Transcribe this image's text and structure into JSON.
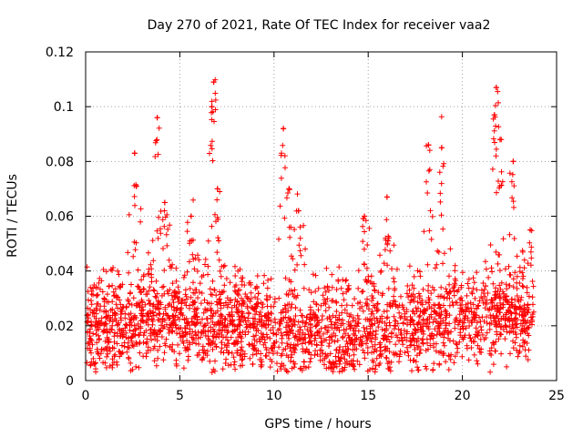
{
  "chart_data": {
    "type": "scatter",
    "title": "Day 270 of 2021, Rate Of TEC Index for receiver vaa2",
    "xlabel": "GPS time / hours",
    "ylabel": "ROTI / TECUs",
    "xlim": [
      0,
      25
    ],
    "ylim": [
      0,
      0.12
    ],
    "xticks": [
      0,
      5,
      10,
      15,
      20,
      25
    ],
    "xtick_labels": [
      "0",
      "5",
      "10",
      "15",
      "20",
      "25"
    ],
    "yticks": [
      0,
      0.02,
      0.04,
      0.06,
      0.08,
      0.1,
      0.12
    ],
    "ytick_labels": [
      "0",
      "0.02",
      "0.04",
      "0.06",
      "0.08",
      "0.1",
      "0.12"
    ],
    "grid": true,
    "marker": "+",
    "marker_color": "#ff0000",
    "x_data_range": [
      0,
      23.8
    ],
    "density_note": "thousands of points; dense band 0.003-0.03 ROTI across the day",
    "series": [
      {
        "name": "ROTI",
        "peaks": [
          {
            "x": 2.6,
            "y": 0.083
          },
          {
            "x": 3.8,
            "y": 0.096
          },
          {
            "x": 4.2,
            "y": 0.065
          },
          {
            "x": 5.6,
            "y": 0.06
          },
          {
            "x": 6.8,
            "y": 0.109
          },
          {
            "x": 6.7,
            "y": 0.1
          },
          {
            "x": 7.0,
            "y": 0.07
          },
          {
            "x": 10.5,
            "y": 0.092
          },
          {
            "x": 10.8,
            "y": 0.07
          },
          {
            "x": 11.3,
            "y": 0.062
          },
          {
            "x": 14.8,
            "y": 0.06
          },
          {
            "x": 16.0,
            "y": 0.067
          },
          {
            "x": 18.2,
            "y": 0.086
          },
          {
            "x": 18.9,
            "y": 0.085
          },
          {
            "x": 21.8,
            "y": 0.107
          },
          {
            "x": 21.7,
            "y": 0.097
          },
          {
            "x": 22.0,
            "y": 0.088
          },
          {
            "x": 22.7,
            "y": 0.08
          },
          {
            "x": 23.6,
            "y": 0.055
          }
        ]
      }
    ]
  }
}
